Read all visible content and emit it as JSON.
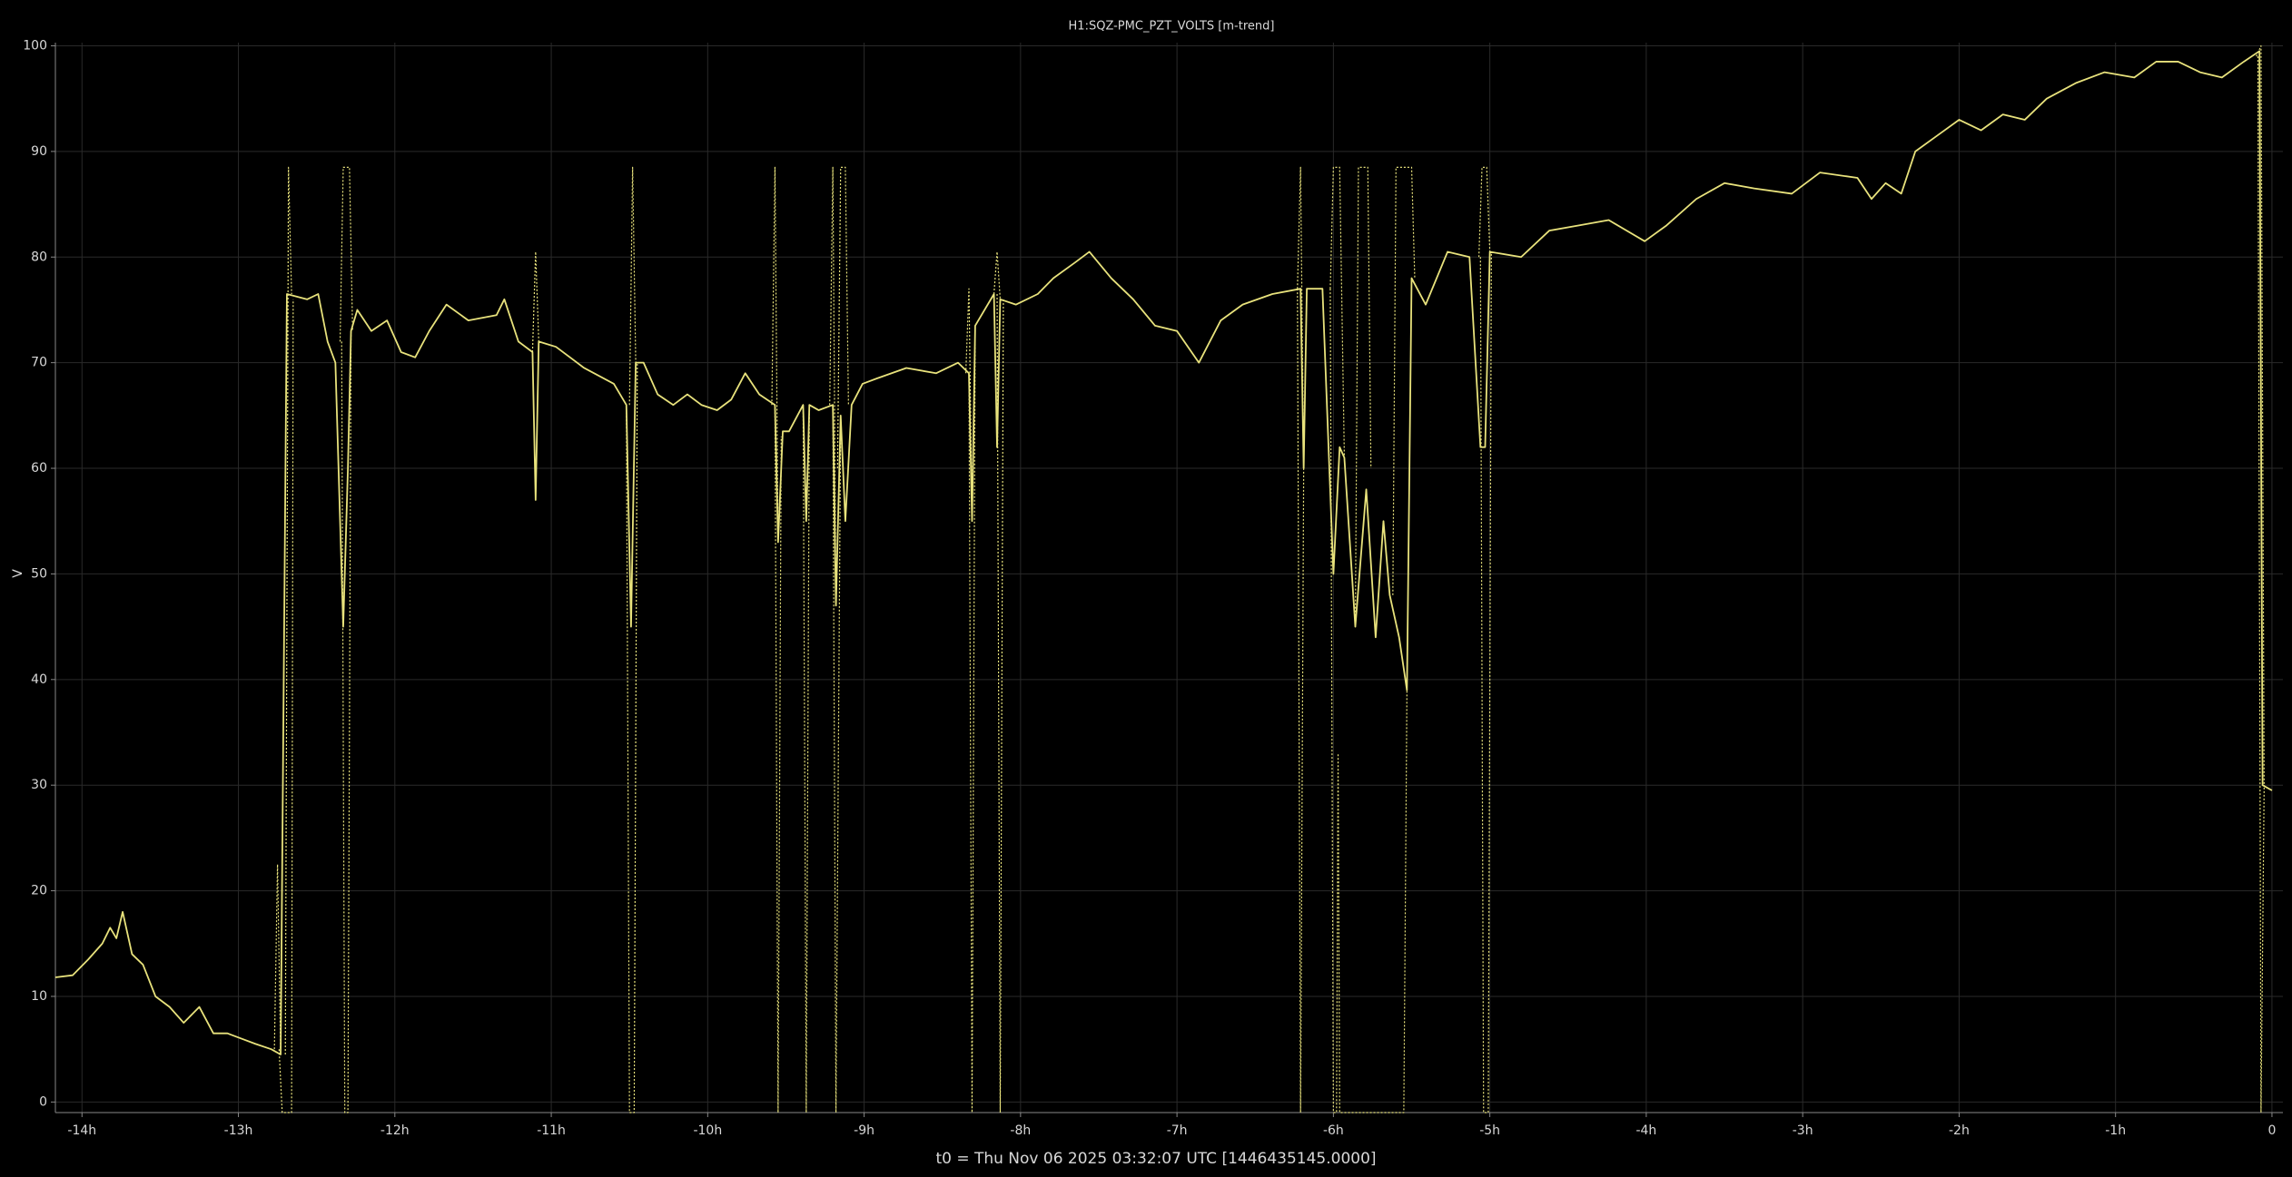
{
  "chart_data": {
    "type": "line",
    "title": "H1:SQZ-PMC_PZT_VOLTS [m-trend]",
    "xlabel": "t0 = Thu Nov 06 2025 03:32:07 UTC [1446435145.0000]",
    "ylabel": "V",
    "grid": true,
    "xlim": [
      -14.17,
      0.07
    ],
    "ylim": [
      -1,
      100.3
    ],
    "xticks": [
      {
        "value": -14,
        "label": "-14h"
      },
      {
        "value": -13,
        "label": "-13h"
      },
      {
        "value": -12,
        "label": "-12h"
      },
      {
        "value": -11,
        "label": "-11h"
      },
      {
        "value": -10,
        "label": "-10h"
      },
      {
        "value": -9,
        "label": "-9h"
      },
      {
        "value": -8,
        "label": "-8h"
      },
      {
        "value": -7,
        "label": "-7h"
      },
      {
        "value": -6,
        "label": "-6h"
      },
      {
        "value": -5,
        "label": "-5h"
      },
      {
        "value": -4,
        "label": "-4h"
      },
      {
        "value": -3,
        "label": "-3h"
      },
      {
        "value": -2,
        "label": "-2h"
      },
      {
        "value": -1,
        "label": "-1h"
      },
      0
    ],
    "yticks": [
      0,
      10,
      20,
      30,
      40,
      50,
      60,
      70,
      80,
      90,
      100
    ],
    "series": [
      {
        "color": "#e8e27c",
        "style": "solid",
        "x": [
          -14.17,
          -14.06,
          -13.96,
          -13.87,
          -13.82,
          -13.78,
          -13.74,
          -13.68,
          -13.61,
          -13.53,
          -13.44,
          -13.35,
          -13.25,
          -13.16,
          -13.07,
          -12.98,
          -12.89,
          -12.79,
          -12.73,
          -12.69,
          -12.56,
          -12.49,
          -12.43,
          -12.38,
          -12.33,
          -12.3,
          -12.28,
          -12.24,
          -12.15,
          -12.05,
          -11.96,
          -11.87,
          -11.78,
          -11.67,
          -11.53,
          -11.35,
          -11.3,
          -11.21,
          -11.12,
          -11.1,
          -11.08,
          -10.97,
          -10.79,
          -10.6,
          -10.52,
          -10.49,
          -10.46,
          -10.41,
          -10.32,
          -10.22,
          -10.13,
          -10.04,
          -9.94,
          -9.85,
          -9.76,
          -9.67,
          -9.57,
          -9.55,
          -9.52,
          -9.48,
          -9.39,
          -9.37,
          -9.35,
          -9.29,
          -9.2,
          -9.18,
          -9.15,
          -9.12,
          -9.08,
          -9.01,
          -8.92,
          -8.73,
          -8.54,
          -8.4,
          -8.33,
          -8.31,
          -8.29,
          -8.17,
          -8.15,
          -8.13,
          -8.03,
          -7.89,
          -7.79,
          -7.65,
          -7.56,
          -7.42,
          -7.28,
          -7.14,
          -7.0,
          -6.86,
          -6.72,
          -6.58,
          -6.39,
          -6.21,
          -6.19,
          -6.17,
          -6.07,
          -6.0,
          -5.96,
          -5.93,
          -5.86,
          -5.79,
          -5.73,
          -5.68,
          -5.64,
          -5.58,
          -5.53,
          -5.5,
          -5.41,
          -5.27,
          -5.13,
          -5.06,
          -5.03,
          -5.0,
          -4.8,
          -4.62,
          -4.43,
          -4.24,
          -4.01,
          -3.87,
          -3.68,
          -3.5,
          -3.31,
          -3.07,
          -2.89,
          -2.65,
          -2.56,
          -2.47,
          -2.37,
          -2.28,
          -2.14,
          -2.0,
          -1.86,
          -1.72,
          -1.58,
          -1.44,
          -1.25,
          -1.07,
          -0.88,
          -0.74,
          -0.6,
          -0.46,
          -0.32,
          -0.18,
          -0.08,
          -0.06,
          0
        ],
        "values": [
          11.8,
          12.0,
          13.5,
          15,
          16.5,
          15.5,
          18,
          14,
          13,
          10,
          9,
          7.5,
          9,
          6.5,
          6.5,
          6,
          5.5,
          5,
          4.5,
          76.5,
          76,
          76.5,
          72,
          70,
          45,
          60,
          73,
          75,
          73,
          74,
          71,
          70.5,
          73,
          75.5,
          74,
          74.5,
          76,
          72,
          71,
          57,
          72,
          71.5,
          69.5,
          68,
          66,
          45,
          70,
          70,
          67,
          66,
          67,
          66,
          65.5,
          66.5,
          69,
          67,
          66,
          53,
          63.5,
          63.5,
          66,
          55,
          66,
          65.5,
          66,
          47,
          65,
          55,
          66,
          68,
          68.5,
          69.5,
          69,
          70,
          69,
          55,
          73.5,
          76.5,
          62,
          76,
          75.5,
          76.5,
          78,
          79.5,
          80.5,
          78,
          76,
          73.5,
          73,
          70,
          74,
          75.5,
          76.5,
          77,
          60,
          77,
          77,
          50,
          62,
          61,
          45,
          58,
          44,
          55,
          48,
          44,
          39,
          78,
          75.5,
          80.5,
          80,
          62,
          62,
          80.5,
          80,
          82.5,
          83,
          83.5,
          81.5,
          83,
          85.5,
          87,
          86.5,
          86,
          88,
          87.5,
          85.5,
          87,
          86,
          90,
          91.5,
          93,
          92,
          93.5,
          93,
          95,
          96.5,
          97.5,
          97,
          98.5,
          98.5,
          97.5,
          97,
          98.5,
          99.5,
          30,
          29.5
        ]
      },
      {
        "color": "#e8e27c",
        "style": "dotted",
        "x": [
          -12.77,
          -12.75,
          -12.73,
          null,
          -12.7,
          -12.68,
          -12.66,
          null,
          -12.35,
          -12.33,
          -12.29,
          -12.27,
          null,
          -11.12,
          -11.1,
          -11.08,
          null,
          -10.5,
          -10.48,
          -10.46,
          null,
          -9.59,
          -9.57,
          -9.55,
          null,
          -9.22,
          -9.2,
          -9.18,
          null,
          -9.17,
          -9.15,
          -9.12,
          -9.1,
          null,
          -8.35,
          -8.33,
          -8.31,
          null,
          -8.17,
          -8.15,
          -8.13,
          null,
          -6.23,
          -6.21,
          -6.19,
          null,
          -6.02,
          -6.0,
          -5.96,
          -5.93,
          null,
          -5.86,
          -5.84,
          -5.78,
          -5.76,
          null,
          -5.62,
          -5.6,
          -5.5,
          -5.48,
          null,
          -5.07,
          -5.05,
          -5.02,
          -5.0,
          null,
          -0.1,
          -0.07,
          -0.05
        ],
        "values": [
          5,
          22.5,
          4.5,
          null,
          4.5,
          88.5,
          76.5,
          null,
          72,
          88.5,
          88.5,
          73,
          null,
          71,
          80.5,
          72,
          null,
          66,
          88.5,
          70,
          null,
          66,
          88.5,
          53,
          null,
          66,
          88.5,
          47,
          null,
          60,
          88.5,
          88.5,
          66,
          null,
          69,
          77,
          55,
          null,
          76.5,
          80.5,
          76,
          null,
          77,
          88.5,
          60,
          null,
          77,
          88.5,
          88.5,
          61,
          null,
          45,
          88.5,
          88.5,
          60,
          null,
          48,
          88.5,
          88.5,
          78,
          null,
          80,
          88.5,
          88.5,
          80.5,
          null,
          99,
          100,
          30
        ]
      },
      {
        "color": "#e8e27c",
        "style": "dotted",
        "x": [
          -12.74,
          -12.72,
          -12.66,
          -12.65,
          null,
          -12.34,
          -12.32,
          -12.3,
          -12.28,
          null,
          -10.52,
          -10.5,
          -10.47,
          -10.45,
          null,
          -9.57,
          -9.55,
          -9.53,
          null,
          -9.39,
          -9.37,
          -9.35,
          null,
          -9.2,
          -9.18,
          -9.15,
          null,
          -8.33,
          -8.31,
          -8.29,
          null,
          -8.15,
          -8.13,
          -8.11,
          null,
          -6.23,
          -6.21,
          -6.19,
          null,
          -6.02,
          -6.0,
          -5.98,
          -5.97,
          -5.96,
          -5.55,
          -5.53,
          null,
          -5.06,
          -5.04,
          -5.01,
          -4.99,
          null,
          -0.09,
          -0.07,
          -0.05
        ],
        "values": [
          5,
          -1,
          -1,
          76,
          null,
          72,
          -1,
          -1,
          73,
          null,
          66,
          -1,
          -1,
          70,
          null,
          66,
          -1,
          63,
          null,
          66,
          -1,
          66,
          null,
          66,
          -1,
          65,
          null,
          69,
          -1,
          73.5,
          null,
          76.5,
          -1,
          76,
          null,
          77,
          -1,
          60,
          null,
          77,
          -1,
          -1,
          33,
          -1,
          -1,
          39,
          null,
          80,
          -1,
          -1,
          80.5,
          null,
          99,
          -1,
          30
        ]
      }
    ]
  }
}
